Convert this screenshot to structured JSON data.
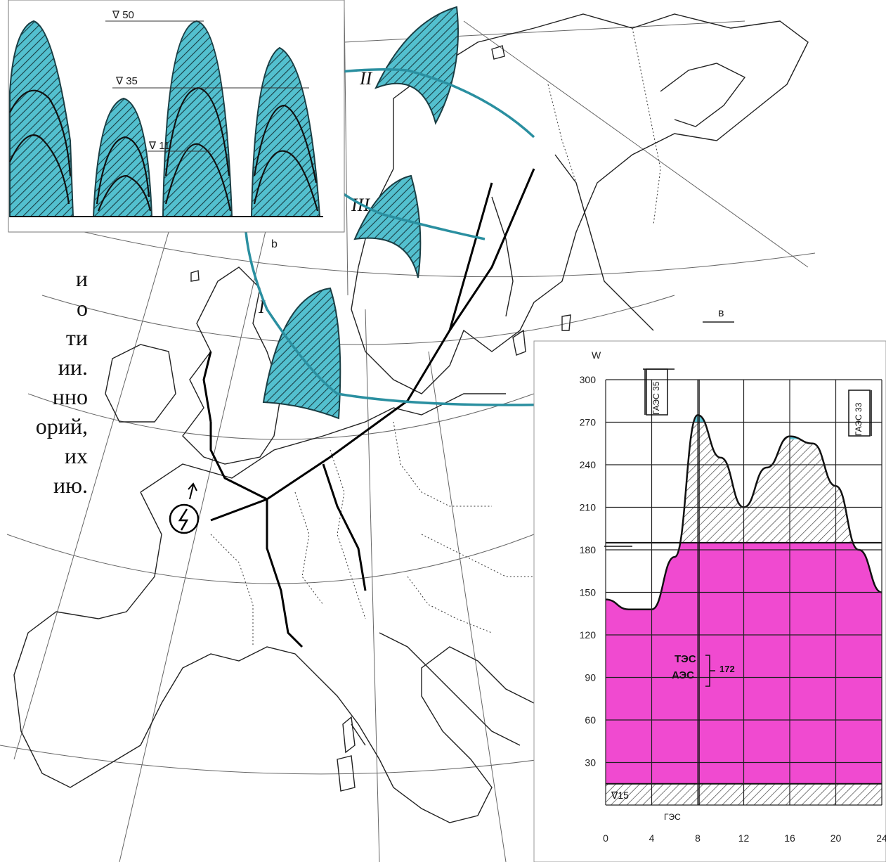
{
  "background_text_fragments": [
    "и",
    "о",
    "ти",
    "ии.",
    "нно",
    "орий,",
    "их",
    "ию."
  ],
  "top_inset": {
    "levels": [
      "∇ 50",
      "∇ 35",
      "∇ 11"
    ],
    "bottom_label": "b"
  },
  "map": {
    "zone_labels": [
      "I",
      "II",
      "III"
    ]
  },
  "load_chart": {
    "panel_label": "в",
    "y_axis_title": "W",
    "y_ticks": [
      "300",
      "270",
      "240",
      "210",
      "180",
      "150",
      "120",
      "90",
      "60",
      "30"
    ],
    "x_ticks": [
      "0",
      "4",
      "8",
      "12",
      "16",
      "20",
      "24"
    ],
    "peak_left_label": "ГАЭС 35",
    "peak_right_label": "ГАЭС 33",
    "base_level_label": "∇15",
    "mid_label_1": "ТЭС",
    "mid_label_2": "АЭС",
    "mid_value": "172",
    "bottom_label": "ГЭС",
    "colors": {
      "peak": "#5ec6d6",
      "base": "#f04ad0",
      "accent": "#2a8fa0"
    }
  },
  "chart_data": {
    "type": "area",
    "title": "",
    "xlabel": "",
    "ylabel": "W",
    "xlim": [
      0,
      24
    ],
    "ylim": [
      0,
      300
    ],
    "x": [
      0,
      2,
      4,
      6,
      8,
      10,
      12,
      14,
      16,
      18,
      20,
      22,
      24
    ],
    "series": [
      {
        "name": "ТЭС",
        "values": [
          145,
          138,
          138,
          175,
          275,
          245,
          210,
          238,
          260,
          255,
          225,
          180,
          150
        ]
      }
    ]
  }
}
